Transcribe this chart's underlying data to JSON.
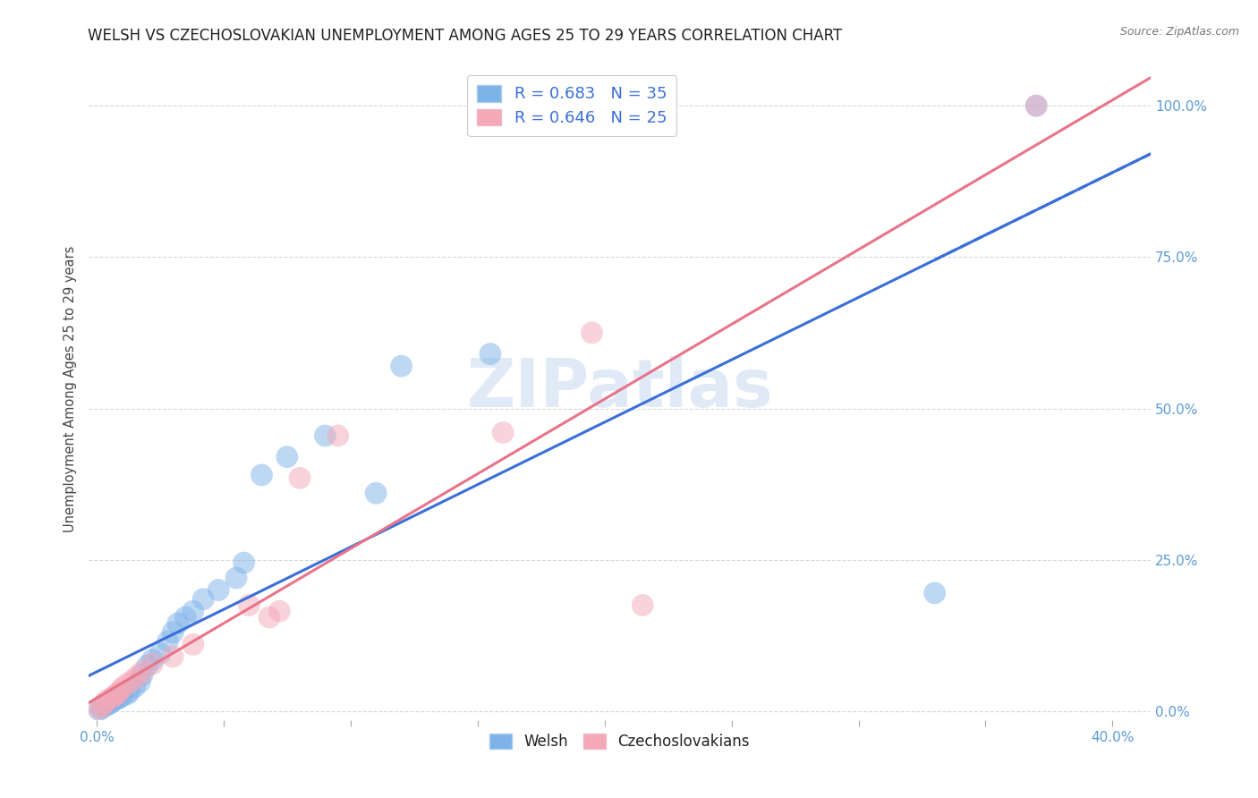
{
  "title": "WELSH VS CZECHOSLOVAKIAN UNEMPLOYMENT AMONG AGES 25 TO 29 YEARS CORRELATION CHART",
  "source": "Source: ZipAtlas.com",
  "ylabel": "Unemployment Among Ages 25 to 29 years",
  "xlim": [
    -0.003,
    0.415
  ],
  "ylim": [
    -0.015,
    1.08
  ],
  "x_ticks": [
    0.0,
    0.05,
    0.1,
    0.15,
    0.2,
    0.25,
    0.3,
    0.35,
    0.4
  ],
  "y_ticks": [
    0.0,
    0.25,
    0.5,
    0.75,
    1.0
  ],
  "welsh_color": "#7eb3e8",
  "czech_color": "#f4a8b8",
  "welsh_line_color": "#3a6fd8",
  "czech_line_color": "#e8748a",
  "welsh_R": 0.683,
  "welsh_N": 35,
  "czech_R": 0.646,
  "czech_N": 25,
  "welsh_x": [
    0.001,
    0.002,
    0.003,
    0.004,
    0.005,
    0.006,
    0.007,
    0.008,
    0.009,
    0.01,
    0.012,
    0.013,
    0.015,
    0.017,
    0.018,
    0.02,
    0.022,
    0.025,
    0.028,
    0.03,
    0.032,
    0.035,
    0.038,
    0.042,
    0.048,
    0.055,
    0.058,
    0.065,
    0.075,
    0.09,
    0.11,
    0.12,
    0.155,
    0.33,
    0.37
  ],
  "welsh_y": [
    0.002,
    0.005,
    0.008,
    0.01,
    0.012,
    0.015,
    0.018,
    0.02,
    0.022,
    0.025,
    0.028,
    0.032,
    0.04,
    0.048,
    0.06,
    0.075,
    0.085,
    0.095,
    0.115,
    0.13,
    0.145,
    0.155,
    0.165,
    0.185,
    0.2,
    0.22,
    0.245,
    0.39,
    0.42,
    0.455,
    0.36,
    0.57,
    0.59,
    0.195,
    1.0
  ],
  "czech_x": [
    0.001,
    0.002,
    0.003,
    0.004,
    0.006,
    0.007,
    0.008,
    0.009,
    0.01,
    0.012,
    0.014,
    0.016,
    0.018,
    0.022,
    0.03,
    0.038,
    0.06,
    0.068,
    0.072,
    0.08,
    0.095,
    0.16,
    0.195,
    0.215,
    0.37
  ],
  "czech_y": [
    0.004,
    0.008,
    0.012,
    0.018,
    0.022,
    0.025,
    0.028,
    0.032,
    0.038,
    0.045,
    0.05,
    0.058,
    0.065,
    0.078,
    0.09,
    0.11,
    0.175,
    0.155,
    0.165,
    0.385,
    0.455,
    0.46,
    0.625,
    0.175,
    1.0
  ],
  "watermark": "ZIPatlas",
  "background_color": "#ffffff",
  "grid_color": "#d8d8d8",
  "title_color": "#222222",
  "axis_label_color": "#444444",
  "right_tick_color": "#5b9bd5",
  "bottom_tick_color": "#5b9bd5",
  "marker_size_pts": 320,
  "marker_alpha": 0.5,
  "line_width": 2.2
}
